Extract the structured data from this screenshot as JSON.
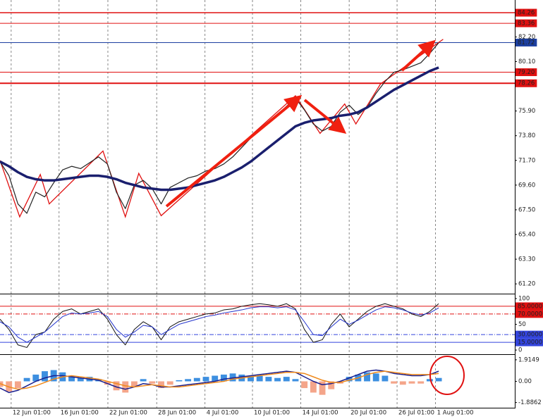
{
  "chart_data": [
    {
      "type": "line",
      "x": [
        0,
        2,
        4,
        6,
        8,
        10,
        12,
        14,
        16,
        18,
        20,
        22,
        24,
        26,
        28,
        30,
        32,
        34,
        36,
        38,
        40,
        42,
        44,
        46,
        48,
        50,
        52,
        54,
        56,
        58,
        60,
        62,
        64,
        66,
        68,
        70,
        72,
        74,
        76,
        78,
        80,
        82,
        84,
        86,
        88,
        90,
        92,
        94,
        96,
        98
      ],
      "xlim": [
        0,
        115
      ],
      "xticks": [
        {
          "value": 2.5,
          "label": "12 Jun 01:00"
        },
        {
          "value": 13.2,
          "label": "16 Jun 01:00"
        },
        {
          "value": 24.1,
          "label": "22 Jun 01:00"
        },
        {
          "value": 35,
          "label": "28 Jun 01:00"
        },
        {
          "value": 45.8,
          "label": "4 Jul 01:00"
        },
        {
          "value": 56.4,
          "label": "10 Jul 01:00"
        },
        {
          "value": 67.2,
          "label": "14 Jul 01:00"
        },
        {
          "value": 78,
          "label": "20 Jul 01:00"
        },
        {
          "value": 88.7,
          "label": "26 Jul 01:00"
        },
        {
          "value": 97.3,
          "label": "1 Aug 01:00"
        }
      ],
      "ylim": [
        60.37,
        85.34
      ],
      "yticks": [
        {
          "value": 82.2,
          "label": "82.20"
        },
        {
          "value": 80.1,
          "label": "80.10"
        },
        {
          "value": 75.9,
          "label": "75.90"
        },
        {
          "value": 73.8,
          "label": "73.80"
        },
        {
          "value": 71.7,
          "label": "71.70"
        },
        {
          "value": 69.6,
          "label": "69.60"
        },
        {
          "value": 67.5,
          "label": "67.50"
        },
        {
          "value": 65.4,
          "label": "65.40"
        },
        {
          "value": 63.3,
          "label": "63.30"
        },
        {
          "value": 61.2,
          "label": "61.20"
        }
      ],
      "series": [
        {
          "color": "#222222",
          "width": 1.2,
          "values": [
            71.6,
            70.4,
            68.0,
            67.2,
            69.0,
            68.6,
            69.8,
            70.9,
            71.2,
            71.0,
            71.5,
            72.0,
            71.4,
            69.0,
            67.6,
            69.6,
            70.0,
            69.3,
            68.0,
            69.4,
            69.8,
            70.2,
            70.4,
            70.8,
            71.0,
            71.4,
            72.0,
            72.8,
            73.6,
            74.4,
            75.0,
            75.6,
            76.3,
            77.0,
            76.0,
            74.8,
            74.2,
            74.6,
            75.8,
            76.4,
            75.6,
            76.2,
            77.4,
            78.4,
            79.2,
            79.4,
            79.7,
            80.0,
            80.8,
            81.7
          ]
        },
        {
          "color": "#1a1f6e",
          "width": 3.5,
          "values": [
            71.6,
            71.2,
            70.7,
            70.3,
            70.1,
            70.0,
            70.0,
            70.1,
            70.2,
            70.3,
            70.4,
            70.4,
            70.3,
            70.1,
            69.8,
            69.6,
            69.4,
            69.3,
            69.2,
            69.2,
            69.3,
            69.4,
            69.6,
            69.8,
            70.0,
            70.3,
            70.7,
            71.1,
            71.6,
            72.2,
            72.8,
            73.4,
            74.0,
            74.6,
            74.9,
            75.1,
            75.2,
            75.3,
            75.5,
            75.6,
            75.8,
            76.2,
            76.7,
            77.2,
            77.7,
            78.1,
            78.5,
            78.9,
            79.3,
            79.6
          ]
        }
      ],
      "zigzag": {
        "color": "#e01010",
        "x": [
          0,
          4.4,
          9,
          11,
          23,
          28,
          31,
          36,
          66,
          71.5,
          77,
          79.5,
          85,
          99
        ],
        "values": [
          71.7,
          66.9,
          70.5,
          68.0,
          72.5,
          66.9,
          70.6,
          67.0,
          77.2,
          74.0,
          76.5,
          74.8,
          78.2,
          82.0
        ]
      },
      "levels": [
        {
          "value": 84.26,
          "color": "#e01010",
          "width": 1.5
        },
        {
          "value": 83.36,
          "color": "#e01010",
          "width": 1
        },
        {
          "value": 81.72,
          "color": "#1c3fa0",
          "width": 1
        },
        {
          "value": 79.2,
          "label": "79.20",
          "color": "#e01010",
          "width": 1
        },
        {
          "value": 78.26,
          "color": "#e01010",
          "width": 2
        }
      ]
    },
    {
      "type": "line",
      "ylim": [
        -8.1,
        106.8
      ],
      "yticks": [
        100,
        50,
        0
      ],
      "series": [
        {
          "color": "#111111",
          "width": 1,
          "values": [
            60,
            40,
            10,
            5,
            30,
            35,
            60,
            75,
            80,
            70,
            75,
            80,
            60,
            30,
            10,
            40,
            55,
            45,
            20,
            45,
            55,
            60,
            65,
            70,
            72,
            78,
            80,
            85,
            88,
            90,
            88,
            85,
            90,
            80,
            40,
            15,
            20,
            50,
            70,
            45,
            60,
            75,
            85,
            90,
            85,
            80,
            70,
            65,
            75,
            90
          ]
        },
        {
          "color": "#2233cc",
          "width": 1,
          "values": [
            55,
            45,
            25,
            15,
            25,
            35,
            50,
            65,
            72,
            70,
            72,
            75,
            65,
            40,
            25,
            35,
            48,
            45,
            30,
            40,
            50,
            55,
            60,
            65,
            68,
            72,
            75,
            78,
            82,
            84,
            84,
            82,
            84,
            78,
            55,
            30,
            28,
            45,
            60,
            50,
            58,
            68,
            78,
            84,
            82,
            78,
            72,
            68,
            72,
            82
          ]
        }
      ],
      "levels": [
        {
          "value": 85,
          "label": "85.0000",
          "color": "#e01010",
          "width": 1
        },
        {
          "value": 70,
          "label": "70.0000",
          "color": "#e01010",
          "width": 1,
          "dash": true
        },
        {
          "value": 30,
          "label": "30.0000",
          "color": "#3344dd",
          "width": 1,
          "dash": true
        },
        {
          "value": 15,
          "label": "15.0000",
          "color": "#3344dd",
          "width": 1
        }
      ]
    },
    {
      "type": "bar",
      "ylim": [
        -2.347,
        2.285
      ],
      "yticks": [
        1.9149,
        {
          "value": 0,
          "label": "0.00"
        },
        -1.8862
      ],
      "up_color": "#3d8fe0",
      "down_color": "#f4a58a",
      "values": [
        -0.5,
        -0.9,
        -0.6,
        0.3,
        0.6,
        0.9,
        1.0,
        0.8,
        0.5,
        0.3,
        0.4,
        0.2,
        -0.3,
        -0.8,
        -1.0,
        -0.5,
        0.2,
        -0.2,
        -0.6,
        -0.3,
        0.1,
        0.2,
        0.3,
        0.4,
        0.5,
        0.6,
        0.7,
        0.6,
        0.5,
        0.5,
        0.4,
        0.3,
        0.4,
        0.2,
        -0.6,
        -1.0,
        -1.2,
        -0.7,
        -0.2,
        0.4,
        0.6,
        0.8,
        0.7,
        0.5,
        -0.2,
        -0.3,
        -0.2,
        -0.2,
        0.2,
        0.3
      ],
      "series": [
        {
          "color": "#1a1f8e",
          "width": 1.5,
          "values": [
            -0.6,
            -1.0,
            -0.8,
            -0.4,
            0,
            0.3,
            0.5,
            0.5,
            0.4,
            0.3,
            0.2,
            0.1,
            -0.2,
            -0.5,
            -0.7,
            -0.5,
            -0.2,
            -0.3,
            -0.5,
            -0.5,
            -0.4,
            -0.3,
            -0.2,
            -0.1,
            0,
            0.2,
            0.3,
            0.4,
            0.5,
            0.6,
            0.7,
            0.8,
            0.9,
            0.8,
            0.4,
            0,
            -0.3,
            -0.2,
            0,
            0.3,
            0.6,
            0.9,
            1.0,
            0.9,
            0.7,
            0.6,
            0.5,
            0.5,
            0.6,
            0.9
          ]
        },
        {
          "color": "#f08a1c",
          "width": 1.5,
          "values": [
            -0.2,
            -0.5,
            -0.7,
            -0.6,
            -0.4,
            -0.1,
            0.2,
            0.4,
            0.5,
            0.4,
            0.3,
            0.2,
            0,
            -0.2,
            -0.4,
            -0.5,
            -0.4,
            -0.3,
            -0.4,
            -0.5,
            -0.5,
            -0.4,
            -0.3,
            -0.2,
            -0.1,
            0,
            0.2,
            0.3,
            0.4,
            0.5,
            0.6,
            0.7,
            0.8,
            0.8,
            0.7,
            0.4,
            0.1,
            -0.1,
            -0.1,
            0.1,
            0.3,
            0.6,
            0.8,
            0.9,
            0.8,
            0.7,
            0.6,
            0.6,
            0.6,
            0.7
          ]
        }
      ]
    }
  ]
}
